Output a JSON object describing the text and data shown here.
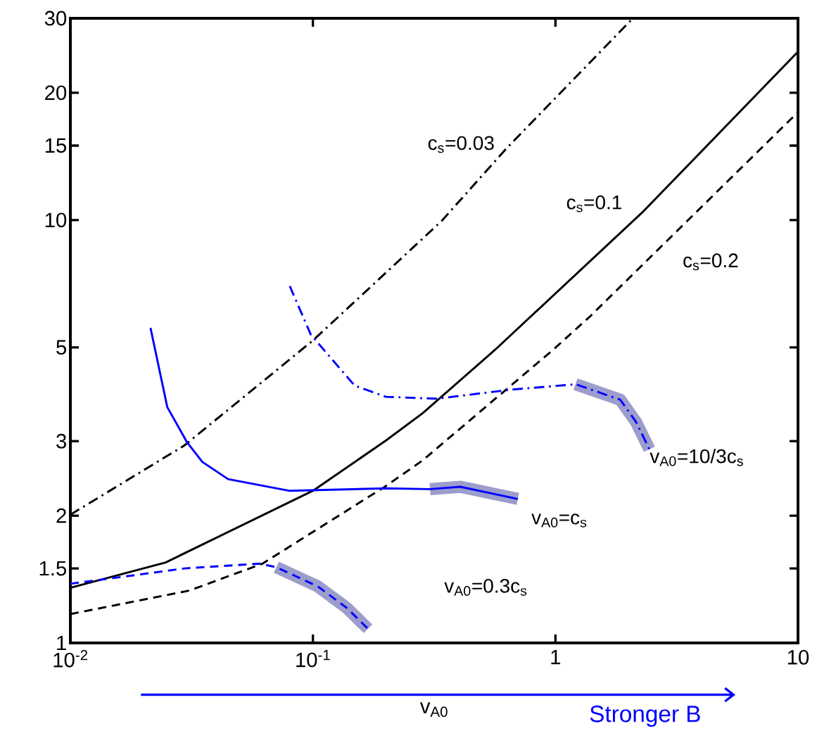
{
  "chart_data": {
    "type": "line",
    "xlabel": "v$_{A0}$",
    "log": "xy",
    "grid": false,
    "marker": "none",
    "xlim": [
      0.01,
      10
    ],
    "ylim": [
      1,
      30
    ],
    "xticks": [
      {
        "value": 0.01,
        "label": "10$^{-2}$"
      },
      {
        "value": 0.1,
        "label": "10$^{-1}$"
      },
      1,
      10
    ],
    "yticks": [
      1,
      1.5,
      2,
      3,
      5,
      10,
      15,
      20,
      30
    ],
    "series": [
      {
        "color": "#000000",
        "line_style": "dashdot",
        "x": [
          0.01,
          0.0295,
          0.1,
          0.34,
          0.63,
          2.05
        ],
        "values": [
          2.01,
          2.93,
          5.19,
          9.96,
          14.8,
          29.7
        ]
      },
      {
        "color": "#000000",
        "line_style": "solid",
        "x": [
          0.01,
          0.0247,
          0.1,
          0.2,
          0.283,
          0.565,
          2.31,
          10
        ],
        "values": [
          1.35,
          1.55,
          2.29,
          3.01,
          3.49,
          4.94,
          10.5,
          25
        ]
      },
      {
        "color": "#000000",
        "line_style": "dashed",
        "x": [
          0.01,
          0.031,
          0.062,
          0.2,
          0.283,
          0.98,
          1.39,
          10
        ],
        "values": [
          1.17,
          1.33,
          1.54,
          2.35,
          2.7,
          4.94,
          5.92,
          18
        ]
      },
      {
        "color": "#9c9dcc",
        "x": [
          0.304,
          0.405,
          0.7
        ],
        "values": [
          2.31,
          2.34,
          2.19
        ]
      },
      {
        "color": "#9c9dcc",
        "x": [
          0.0707,
          0.1048,
          0.138,
          0.1687
        ],
        "values": [
          1.51,
          1.36,
          1.21,
          1.08
        ]
      },
      {
        "color": "#9c9dcc",
        "x": [
          1.21,
          1.85,
          2.15,
          2.44
        ],
        "values": [
          4.09,
          3.76,
          3.33,
          2.87
        ]
      },
      {
        "color": "#0000ff",
        "line_style": "solid",
        "x": [
          0.0214,
          0.0251,
          0.0303,
          0.035,
          0.0447,
          0.0797,
          0.2,
          0.304,
          0.405,
          0.7
        ],
        "values": [
          5.56,
          3.61,
          2.98,
          2.68,
          2.44,
          2.29,
          2.32,
          2.31,
          2.34,
          2.19
        ]
      },
      {
        "color": "#0000ff",
        "line_style": "dashed",
        "x": [
          0.01,
          0.0159,
          0.0295,
          0.0602,
          0.0707,
          0.1048,
          0.138,
          0.1687
        ],
        "values": [
          1.38,
          1.43,
          1.5,
          1.54,
          1.51,
          1.36,
          1.21,
          1.08
        ]
      },
      {
        "color": "#0000ff",
        "line_style": "dashdot",
        "x": [
          0.0803,
          0.098,
          0.1486,
          0.2,
          0.324,
          0.65,
          1.21,
          1.85,
          2.15,
          2.44
        ],
        "values": [
          6.98,
          5.36,
          4.06,
          3.82,
          3.78,
          3.97,
          4.09,
          3.76,
          3.33,
          2.87
        ]
      }
    ],
    "annotations": [
      "c$_{s}$=0.03",
      "c$_{s}$=0.1",
      "c$_{s}$=0.2",
      "v$_{A0}$=10/3c$_{s}$",
      "v$_{A0}$=c$_{s}$",
      "v$_{A0}$=0.3c$_{s}$",
      "Stronger B"
    ]
  }
}
